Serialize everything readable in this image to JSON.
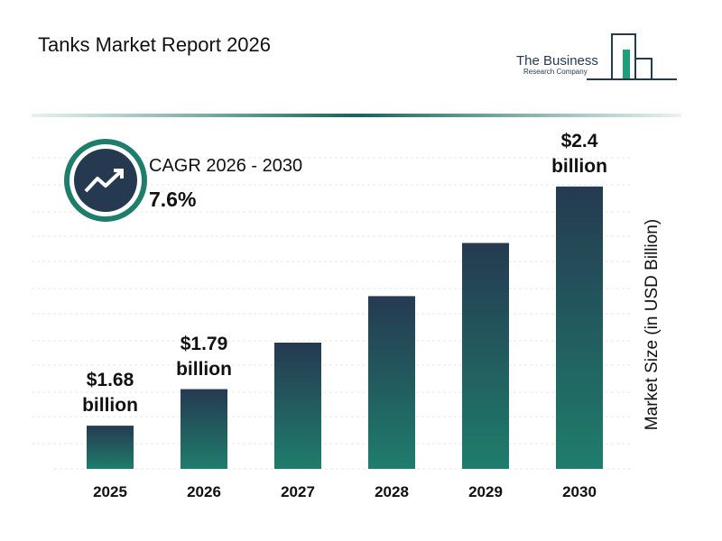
{
  "header": {
    "title": "Tanks Market Report 2026",
    "logo_line1": "The Business",
    "logo_line2": "Research Company"
  },
  "cagr": {
    "label": "CAGR 2026 - 2030",
    "value": "7.6%"
  },
  "chart_data": {
    "type": "bar",
    "y_label": "Market Size (in USD Billion)",
    "categories": [
      "2025",
      "2026",
      "2027",
      "2028",
      "2029",
      "2030"
    ],
    "values": [
      1.68,
      1.79,
      1.93,
      2.07,
      2.23,
      2.4
    ],
    "value_labels": [
      "$1.68 billion",
      "$1.79 billion",
      null,
      null,
      null,
      "$2.4 billion"
    ],
    "ylim": [
      1.55,
      2.5
    ]
  }
}
